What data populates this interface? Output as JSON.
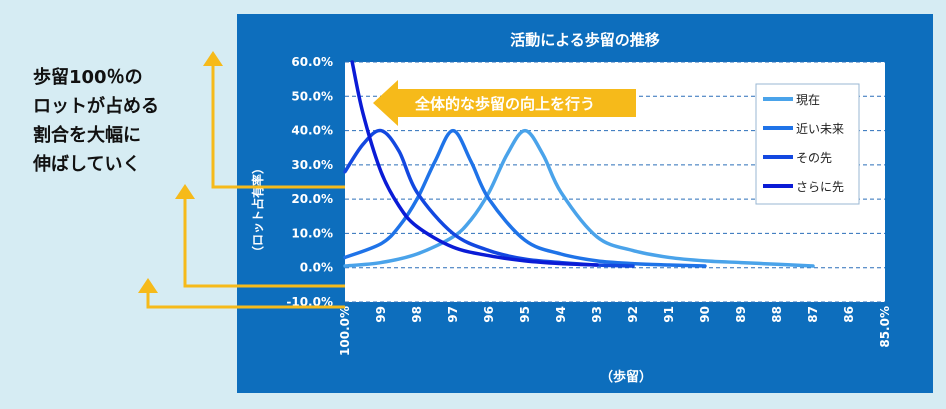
{
  "side_note": {
    "lines": [
      "歩留100％の",
      "ロットが占める",
      "割合を大幅に",
      "伸ばしていく"
    ]
  },
  "callout": {
    "text": "全体的な歩留の向上を行う"
  },
  "colors": {
    "background": "#d6ecf3",
    "chart_bg": "#0d6ebd",
    "arrow": "#f6ba1a",
    "series": [
      "#4aa3ea",
      "#1f73e8",
      "#1348e0",
      "#0a1bd6"
    ]
  },
  "chart_data": {
    "type": "line",
    "title": "活動による歩留の推移",
    "xlabel": "（歩留）",
    "ylabel": "（ロット占有率）",
    "x_ticks": [
      "100.0%",
      "99",
      "98",
      "97",
      "96",
      "95",
      "94",
      "93",
      "92",
      "91",
      "90",
      "89",
      "88",
      "87",
      "86",
      "85.0%"
    ],
    "y_ticks": [
      "-10.0%",
      "0.0%",
      "10.0%",
      "20.0%",
      "30.0%",
      "40.0%",
      "50.0%",
      "60.0%"
    ],
    "xlim": [
      100,
      85
    ],
    "ylim": [
      -10,
      60
    ],
    "grid": true,
    "legend_position": "top-right",
    "series": [
      {
        "name": "現在",
        "x": [
          100,
          99,
          98,
          97,
          96.5,
          96,
          95.5,
          95,
          94.5,
          94,
          93,
          92,
          91,
          90,
          89,
          88,
          87
        ],
        "y": [
          0.5,
          1.5,
          4,
          9,
          14,
          22,
          33,
          40,
          33,
          22,
          9,
          5,
          3,
          2,
          1.5,
          1,
          0.5
        ]
      },
      {
        "name": "近い未来",
        "x": [
          100,
          99,
          98.5,
          98,
          97.5,
          97,
          96.5,
          96,
          95,
          94,
          93,
          92,
          91,
          90
        ],
        "y": [
          3,
          7,
          12,
          20,
          31,
          40,
          31,
          20,
          8,
          4,
          2,
          1.2,
          0.8,
          0.5
        ]
      },
      {
        "name": "その先",
        "x": [
          100,
          99.5,
          99,
          98.5,
          98,
          97,
          96,
          95,
          94,
          93,
          92
        ],
        "y": [
          28,
          36,
          40,
          34,
          22,
          10,
          5,
          2.5,
          1.5,
          0.8,
          0.5
        ]
      },
      {
        "name": "さらに先",
        "x": [
          99.8,
          99.5,
          99,
          98.5,
          98,
          97,
          96,
          95,
          94,
          93
        ],
        "y": [
          60,
          45,
          28,
          18,
          12,
          6,
          3.5,
          2,
          1.2,
          0.8
        ]
      }
    ]
  }
}
